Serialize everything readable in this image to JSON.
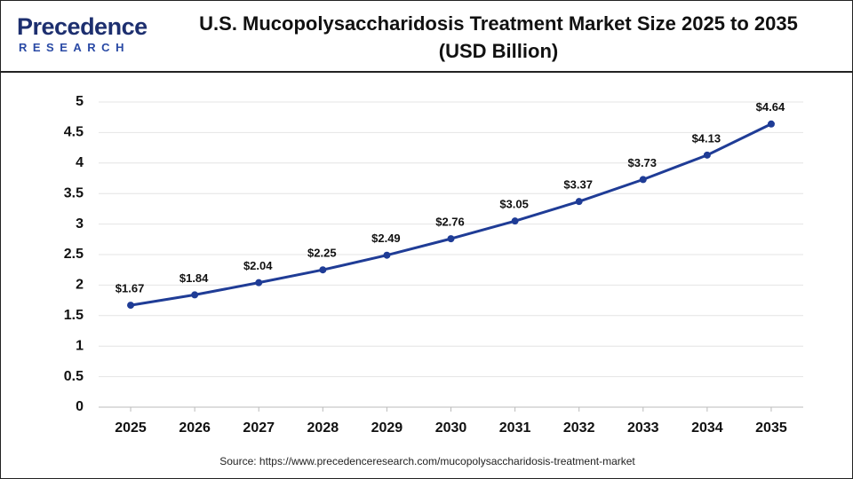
{
  "logo": {
    "name": "Precedence",
    "sub": "RESEARCH"
  },
  "chart_data": {
    "type": "line",
    "title": "U.S. Mucopolysaccharidosis Treatment Market Size 2025 to 2035 (USD Billion)",
    "categories": [
      "2025",
      "2026",
      "2027",
      "2028",
      "2029",
      "2030",
      "2031",
      "2032",
      "2033",
      "2034",
      "2035"
    ],
    "values": [
      1.67,
      1.84,
      2.04,
      2.25,
      2.49,
      2.76,
      3.05,
      3.37,
      3.73,
      4.13,
      4.64
    ],
    "value_labels": [
      "$1.67",
      "$1.84",
      "$2.04",
      "$2.25",
      "$2.49",
      "$2.76",
      "$3.05",
      "$3.37",
      "$3.73",
      "$4.13",
      "$4.64"
    ],
    "color": "#1f3c96",
    "ylim": [
      0,
      5
    ],
    "yticks": [
      0,
      0.5,
      1,
      1.5,
      2,
      2.5,
      3,
      3.5,
      4,
      4.5,
      5
    ],
    "grid": true,
    "source": "Source: https://www.precedenceresearch.com/mucopolysaccharidosis-treatment-market"
  }
}
